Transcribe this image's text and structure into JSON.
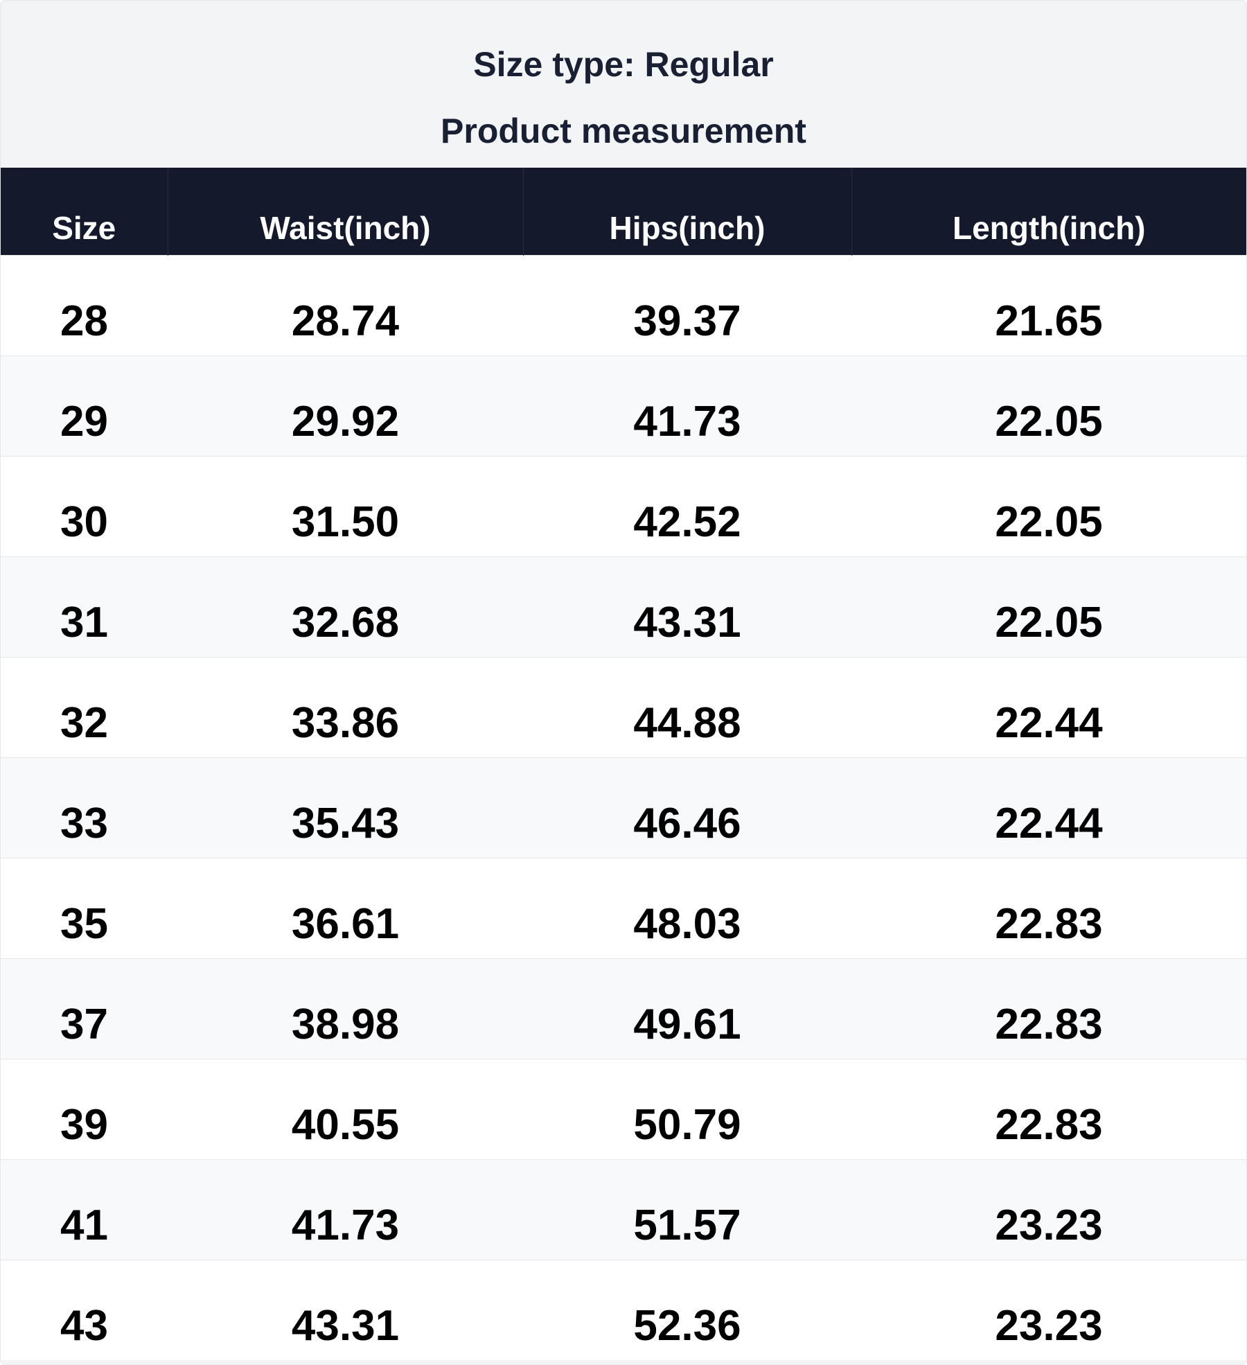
{
  "header": {
    "title": "Size type: Regular",
    "subtitle": "Product measurement"
  },
  "table": {
    "columns": [
      "Size",
      "Waist(inch)",
      "Hips(inch)",
      "Length(inch)"
    ],
    "rows": [
      [
        "28",
        "28.74",
        "39.37",
        "21.65"
      ],
      [
        "29",
        "29.92",
        "41.73",
        "22.05"
      ],
      [
        "30",
        "31.50",
        "42.52",
        "22.05"
      ],
      [
        "31",
        "32.68",
        "43.31",
        "22.05"
      ],
      [
        "32",
        "33.86",
        "44.88",
        "22.44"
      ],
      [
        "33",
        "35.43",
        "46.46",
        "22.44"
      ],
      [
        "35",
        "36.61",
        "48.03",
        "22.83"
      ],
      [
        "37",
        "38.98",
        "49.61",
        "22.83"
      ],
      [
        "39",
        "40.55",
        "50.79",
        "22.83"
      ],
      [
        "41",
        "41.73",
        "51.57",
        "23.23"
      ],
      [
        "43",
        "43.31",
        "52.36",
        "23.23"
      ]
    ]
  }
}
